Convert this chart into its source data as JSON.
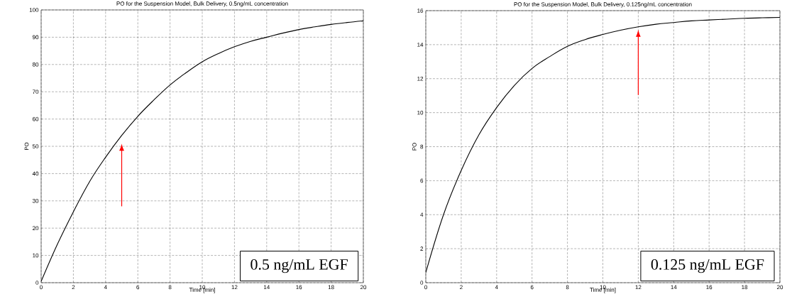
{
  "chart_data": [
    {
      "type": "line",
      "title": "PO for the Suspension Model, Bulk Delivery, 0.5ng/mL concentration",
      "xlabel": "Time [min]",
      "ylabel": "PO",
      "x": [
        0,
        1,
        2,
        3,
        4,
        5,
        6,
        7,
        8,
        9,
        10,
        11,
        12,
        13,
        14,
        15,
        16,
        17,
        18,
        19,
        20
      ],
      "series": [
        {
          "color": "#000000",
          "values": [
            0.5,
            14,
            26,
            37,
            46,
            54,
            61,
            67,
            72.5,
            77,
            81,
            84,
            86.5,
            88.5,
            90,
            91.5,
            92.8,
            93.8,
            94.7,
            95.4,
            96
          ]
        }
      ],
      "xlim": [
        0,
        20
      ],
      "ylim": [
        0,
        100
      ],
      "xticks": [
        0,
        2,
        4,
        6,
        8,
        10,
        12,
        14,
        16,
        18,
        20
      ],
      "yticks": [
        0,
        10,
        20,
        30,
        40,
        50,
        60,
        70,
        80,
        90,
        100
      ],
      "grid": true,
      "annotations": [
        "0.5 ng/mL EGF"
      ]
    },
    {
      "type": "line",
      "title": "PO for the Suspension Model, Bulk Delivery, 0.125ng/mL concentration",
      "xlabel": "Time [min]",
      "ylabel": "PO",
      "x": [
        0,
        1,
        2,
        3,
        4,
        5,
        6,
        7,
        8,
        9,
        10,
        11,
        12,
        13,
        14,
        15,
        16,
        17,
        18,
        19,
        20
      ],
      "series": [
        {
          "color": "#000000",
          "values": [
            0.6,
            4,
            6.6,
            8.7,
            10.3,
            11.6,
            12.6,
            13.3,
            13.9,
            14.3,
            14.6,
            14.85,
            15.05,
            15.2,
            15.3,
            15.4,
            15.45,
            15.5,
            15.55,
            15.58,
            15.6
          ]
        }
      ],
      "xlim": [
        0,
        20
      ],
      "ylim": [
        0,
        16
      ],
      "xticks": [
        0,
        2,
        4,
        6,
        8,
        10,
        12,
        14,
        16,
        18,
        20
      ],
      "yticks": [
        0,
        2,
        4,
        6,
        8,
        10,
        12,
        14,
        16
      ],
      "grid": true,
      "annotations": [
        "0.125 ng/mL EGF"
      ]
    }
  ]
}
